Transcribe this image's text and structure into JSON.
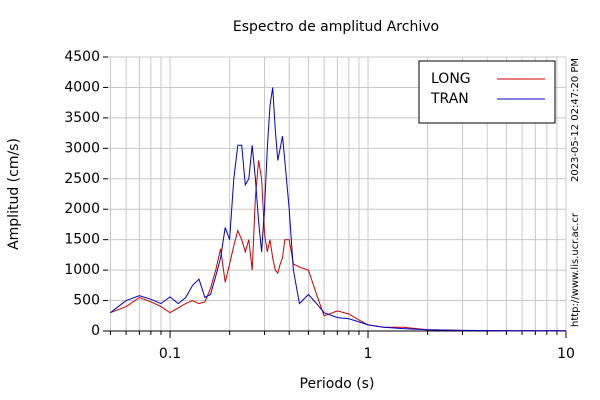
{
  "chart_data": {
    "type": "line",
    "title": "Espectro de amplitud Archivo",
    "x_label": "Periodo (s)",
    "y_label": "Amplitud (cm/s)",
    "timestamp": "2023-05-12 02:47:20 PM",
    "source": "http://www.lis.ucr.ac.cr",
    "x_scale": "log",
    "grid": true,
    "legend": "upper right",
    "xlim": [
      0.0486,
      10
    ],
    "xticks": [
      0.1,
      1,
      10
    ],
    "x_minor_ticks": [
      0.05,
      0.06,
      0.07,
      0.08,
      0.09,
      0.2,
      0.3,
      0.4,
      0.5,
      0.6,
      0.7,
      0.8,
      0.9,
      2,
      3,
      4,
      5,
      6,
      7,
      8,
      9
    ],
    "ylim": [
      0,
      4500
    ],
    "yticks": [
      0,
      500,
      1000,
      1500,
      2000,
      2500,
      3000,
      3500,
      4000,
      4500
    ],
    "x": [
      0.05,
      0.06,
      0.07,
      0.08,
      0.09,
      0.1,
      0.11,
      0.12,
      0.13,
      0.14,
      0.15,
      0.16,
      0.17,
      0.18,
      0.19,
      0.2,
      0.21,
      0.22,
      0.23,
      0.24,
      0.25,
      0.26,
      0.27,
      0.28,
      0.29,
      0.3,
      0.31,
      0.32,
      0.33,
      0.34,
      0.35,
      0.36,
      0.37,
      0.38,
      0.4,
      0.42,
      0.45,
      0.5,
      0.55,
      0.6,
      0.7,
      0.8,
      0.9,
      1,
      1.2,
      1.5,
      2,
      3,
      5,
      10
    ],
    "series": [
      {
        "name": "LONG",
        "color": "#cc0000",
        "values": [
          300,
          400,
          550,
          480,
          400,
          300,
          380,
          450,
          500,
          450,
          480,
          700,
          1000,
          1350,
          800,
          1100,
          1400,
          1650,
          1500,
          1300,
          1500,
          1000,
          2200,
          2800,
          2500,
          1600,
          1300,
          1500,
          1200,
          1000,
          950,
          1100,
          1200,
          1500,
          1500,
          1100,
          1050,
          1000,
          600,
          250,
          330,
          280,
          180,
          100,
          60,
          60,
          20,
          10,
          5,
          5
        ]
      },
      {
        "name": "TRAN",
        "color": "#0000cc",
        "values": [
          300,
          500,
          580,
          520,
          450,
          560,
          450,
          550,
          750,
          850,
          550,
          600,
          900,
          1200,
          1700,
          1500,
          2500,
          3050,
          3050,
          2400,
          2500,
          3050,
          2500,
          1800,
          1300,
          2000,
          3000,
          3700,
          4000,
          3300,
          2800,
          3000,
          3200,
          2800,
          2000,
          1000,
          450,
          600,
          450,
          300,
          220,
          200,
          150,
          100,
          60,
          40,
          20,
          10,
          5,
          5
        ]
      }
    ]
  }
}
